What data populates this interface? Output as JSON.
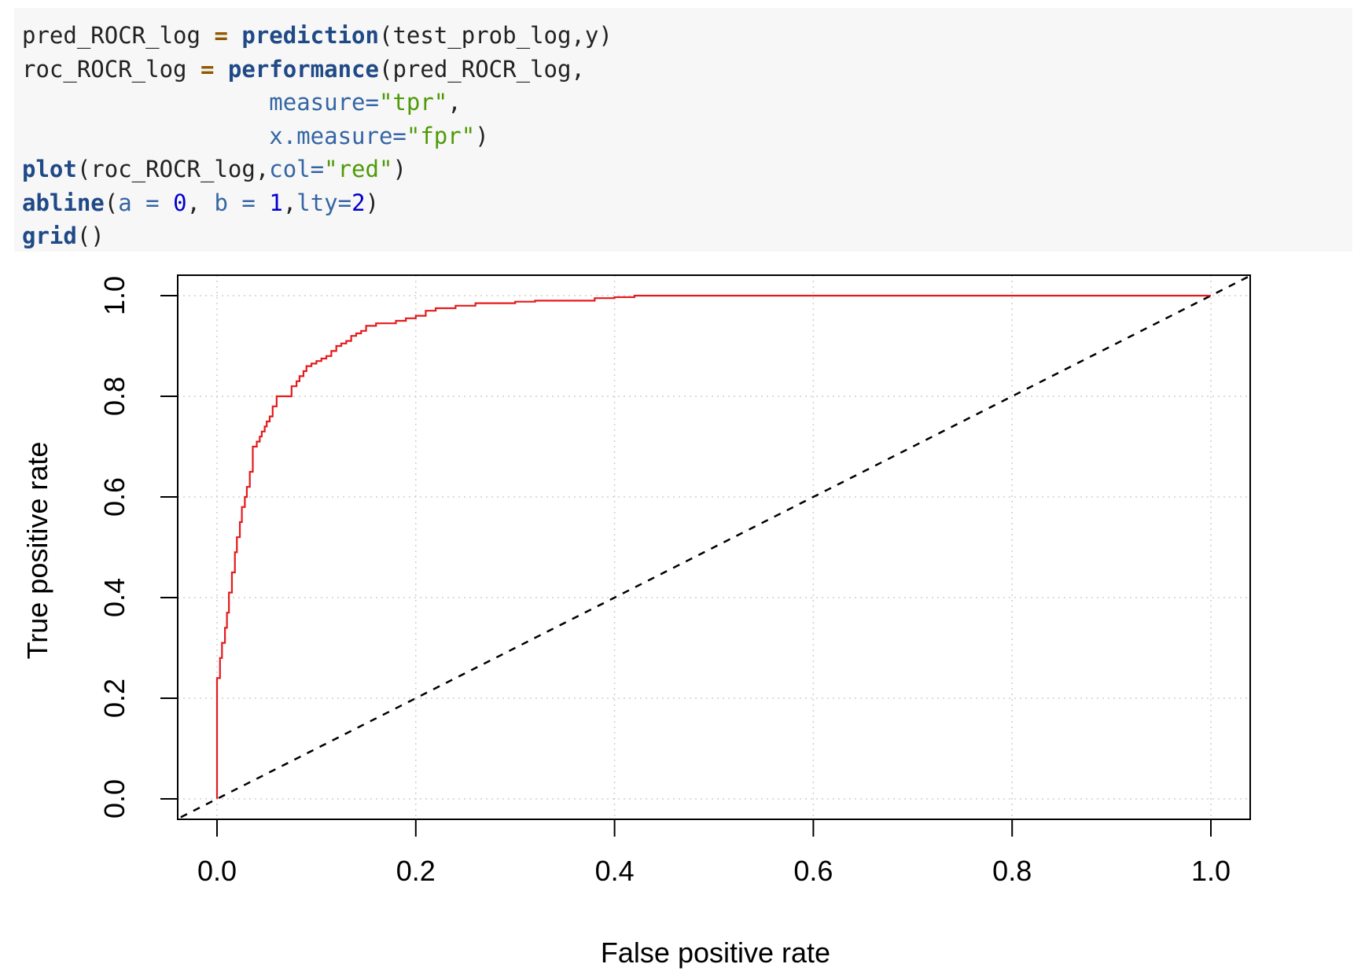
{
  "code": {
    "lines": [
      [
        [
          "default",
          "pred_ROCR_log "
        ],
        [
          "op",
          "="
        ],
        [
          "default",
          " "
        ],
        [
          "fn",
          "prediction"
        ],
        [
          "default",
          "(test_prob_log,y)"
        ]
      ],
      [
        [
          "default",
          "roc_ROCR_log "
        ],
        [
          "op",
          "="
        ],
        [
          "default",
          " "
        ],
        [
          "fn",
          "performance"
        ],
        [
          "default",
          "(pred_ROCR_log,"
        ]
      ],
      [
        [
          "default",
          "                  "
        ],
        [
          "arg",
          "measure="
        ],
        [
          "str",
          "\"tpr\""
        ],
        [
          "default",
          ","
        ]
      ],
      [
        [
          "default",
          "                  "
        ],
        [
          "arg",
          "x.measure="
        ],
        [
          "str",
          "\"fpr\""
        ],
        [
          "default",
          ")"
        ]
      ],
      [
        [
          "fn",
          "plot"
        ],
        [
          "default",
          "(roc_ROCR_log,"
        ],
        [
          "arg",
          "col="
        ],
        [
          "str",
          "\"red\""
        ],
        [
          "default",
          ")"
        ]
      ],
      [
        [
          "fn",
          "abline"
        ],
        [
          "default",
          "("
        ],
        [
          "arg",
          "a = "
        ],
        [
          "num",
          "0"
        ],
        [
          "default",
          ", "
        ],
        [
          "arg",
          "b = "
        ],
        [
          "num",
          "1"
        ],
        [
          "default",
          ","
        ],
        [
          "arg",
          "lty="
        ],
        [
          "num",
          "2"
        ],
        [
          "default",
          ")"
        ]
      ],
      [
        [
          "fn",
          "grid"
        ],
        [
          "default",
          "()"
        ]
      ]
    ]
  },
  "chart_data": {
    "type": "line",
    "xlabel": "False positive rate",
    "ylabel": "True positive rate",
    "xlim": [
      0,
      1
    ],
    "ylim": [
      0,
      1
    ],
    "xticks": [
      "0.0",
      "0.2",
      "0.4",
      "0.6",
      "0.8",
      "1.0"
    ],
    "yticks": [
      "0.0",
      "0.2",
      "0.4",
      "0.6",
      "0.8",
      "1.0"
    ],
    "grid": true,
    "series": [
      {
        "color": "#e41a1c",
        "style": "step",
        "x": [
          0.0,
          0.0,
          0.003,
          0.005,
          0.008,
          0.01,
          0.012,
          0.015,
          0.018,
          0.02,
          0.023,
          0.025,
          0.028,
          0.03,
          0.033,
          0.036,
          0.04,
          0.043,
          0.045,
          0.048,
          0.05,
          0.053,
          0.056,
          0.06,
          0.065,
          0.07,
          0.075,
          0.08,
          0.083,
          0.087,
          0.09,
          0.095,
          0.1,
          0.105,
          0.11,
          0.115,
          0.12,
          0.125,
          0.13,
          0.135,
          0.14,
          0.145,
          0.15,
          0.16,
          0.17,
          0.18,
          0.19,
          0.2,
          0.21,
          0.22,
          0.23,
          0.24,
          0.25,
          0.26,
          0.28,
          0.3,
          0.32,
          0.34,
          0.36,
          0.38,
          0.4,
          0.42,
          0.435,
          1.0
        ],
        "y": [
          0.0,
          0.2,
          0.24,
          0.28,
          0.31,
          0.34,
          0.37,
          0.41,
          0.45,
          0.49,
          0.52,
          0.55,
          0.58,
          0.6,
          0.62,
          0.65,
          0.7,
          0.71,
          0.72,
          0.73,
          0.74,
          0.75,
          0.76,
          0.78,
          0.8,
          0.8,
          0.8,
          0.82,
          0.83,
          0.84,
          0.85,
          0.86,
          0.865,
          0.87,
          0.875,
          0.88,
          0.89,
          0.9,
          0.905,
          0.91,
          0.92,
          0.925,
          0.93,
          0.94,
          0.945,
          0.945,
          0.95,
          0.955,
          0.96,
          0.97,
          0.975,
          0.975,
          0.98,
          0.98,
          0.985,
          0.985,
          0.988,
          0.99,
          0.99,
          0.99,
          0.995,
          0.997,
          1.0,
          1.0
        ]
      },
      {
        "color": "#000000",
        "style": "dashed",
        "x": [
          0,
          1
        ],
        "y": [
          0,
          1
        ]
      }
    ]
  }
}
